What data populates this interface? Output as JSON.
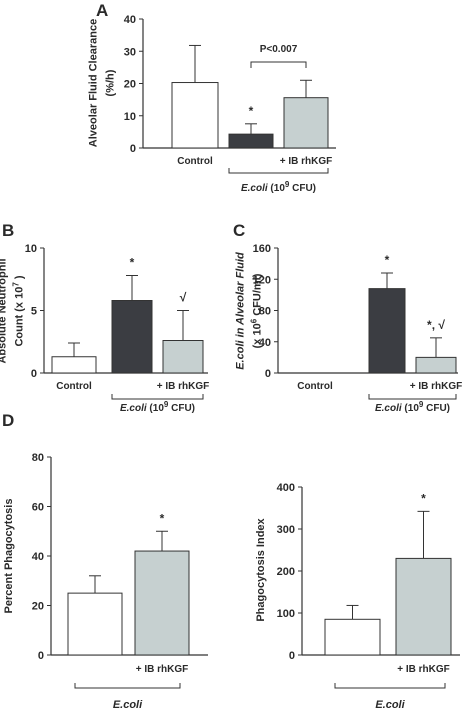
{
  "colors": {
    "white_bar": "#ffffff",
    "dark_bar": "#3b3d42",
    "light_bar": "#c6d0d0",
    "axis": "#333333"
  },
  "chart_data": [
    {
      "panel": "A",
      "type": "bar",
      "ylabel_lines": [
        "Alveolar Fluid Clearance",
        "(%/h)"
      ],
      "ylim": [
        0,
        40
      ],
      "yticks": [
        "0",
        "10",
        "20",
        "30",
        "40"
      ],
      "tick_values": [
        0,
        10,
        20,
        30,
        40
      ],
      "bars": [
        {
          "label": "Control",
          "value": 20.3,
          "error": 11.5,
          "color": "white",
          "annotation": ""
        },
        {
          "label": "",
          "value": 4.3,
          "error": 3.2,
          "color": "dark",
          "annotation": "*"
        },
        {
          "label": "+ IB rhKGF",
          "value": 15.6,
          "error": 5.4,
          "color": "light",
          "annotation": ""
        }
      ],
      "comparison": {
        "from": 1,
        "to": 2,
        "label": "P<0.007"
      },
      "group": {
        "text": "E.coli",
        "suffix": "(10",
        "sup": "9",
        "suffix2": "CFU)",
        "span": [
          1,
          2
        ]
      }
    },
    {
      "panel": "B",
      "type": "bar",
      "ylabel_lines": [
        "Absolute Neutrophil",
        "Count (x 10",
        "7",
        ")"
      ],
      "ylim": [
        0,
        10
      ],
      "yticks": [
        "0",
        "5",
        "10"
      ],
      "tick_values": [
        0,
        5,
        10
      ],
      "bars": [
        {
          "label": "Control",
          "value": 1.3,
          "error": 1.1,
          "color": "white",
          "annotation": ""
        },
        {
          "label": "",
          "value": 5.8,
          "error": 2.0,
          "color": "dark",
          "annotation": "*"
        },
        {
          "label": "+ IB rhKGF",
          "value": 2.6,
          "error": 2.4,
          "color": "light",
          "annotation": "√"
        }
      ],
      "group": {
        "text": "E.coli",
        "suffix": "(10",
        "sup": "9",
        "suffix2": "CFU)",
        "span": [
          1,
          2
        ]
      }
    },
    {
      "panel": "C",
      "type": "bar",
      "ylabel_lines": [
        "E.coli in Alveolar Fluid",
        "(x 10",
        "6",
        "CFU/ml)"
      ],
      "ylim": [
        0,
        160
      ],
      "yticks": [
        "0",
        "40",
        "80",
        "120",
        "160"
      ],
      "tick_values": [
        0,
        40,
        80,
        120,
        160
      ],
      "bars": [
        {
          "label": "Control",
          "value": 0,
          "error": 0,
          "color": "white",
          "annotation": ""
        },
        {
          "label": "",
          "value": 108,
          "error": 20,
          "color": "dark",
          "annotation": "*"
        },
        {
          "label": "+ IB rhKGF",
          "value": 20,
          "error": 25,
          "color": "light",
          "annotation": "*, √"
        }
      ],
      "group": {
        "text": "E.coli",
        "suffix": "(10",
        "sup": "9",
        "suffix2": "CFU)",
        "span": [
          1,
          2
        ]
      }
    },
    {
      "panel": "D",
      "type": "bar",
      "ylabel_lines": [
        "Percent Phagocytosis"
      ],
      "ylim": [
        0,
        80
      ],
      "yticks": [
        "0",
        "20",
        "40",
        "60",
        "80"
      ],
      "tick_values": [
        0,
        20,
        40,
        60,
        80
      ],
      "bars": [
        {
          "label": "",
          "value": 25,
          "error": 7,
          "color": "white",
          "annotation": ""
        },
        {
          "label": "+ IB rhKGF",
          "value": 42,
          "error": 8,
          "color": "light",
          "annotation": "*"
        }
      ],
      "group": {
        "text": "E.coli",
        "span": [
          0,
          1
        ]
      }
    },
    {
      "panel": "",
      "type": "bar",
      "ylabel_lines": [
        "Phagocytosis Index"
      ],
      "ylim": [
        0,
        400
      ],
      "yticks": [
        "0",
        "100",
        "200",
        "300",
        "400"
      ],
      "tick_values": [
        0,
        100,
        200,
        300,
        400
      ],
      "bars": [
        {
          "label": "",
          "value": 85,
          "error": 33,
          "color": "white",
          "annotation": ""
        },
        {
          "label": "+ IB rhKGF",
          "value": 230,
          "error": 112,
          "color": "light",
          "annotation": "*"
        }
      ],
      "group": {
        "text": "E.coli",
        "span": [
          0,
          1
        ]
      }
    }
  ]
}
